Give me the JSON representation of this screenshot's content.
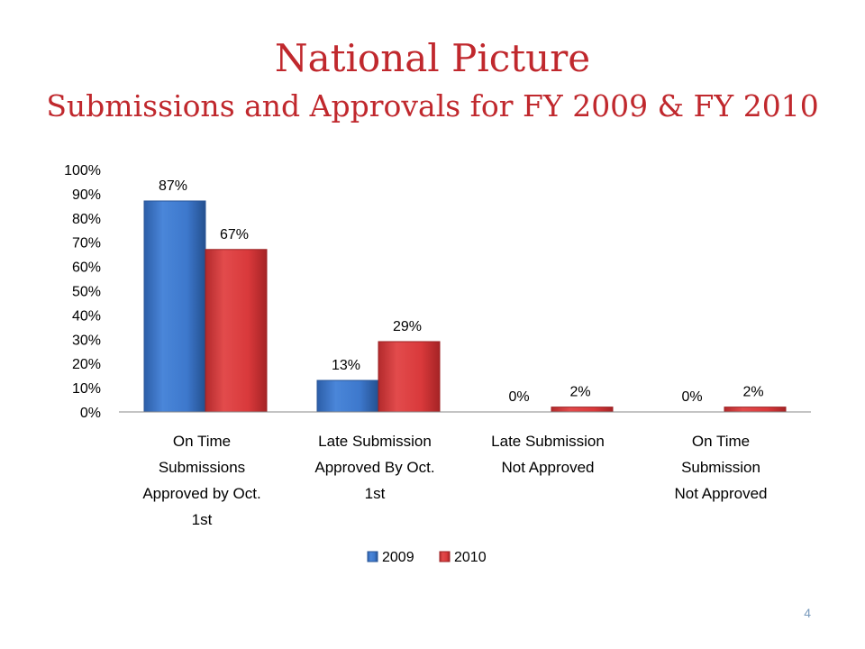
{
  "slide": {
    "title": "National Picture",
    "subtitle": "Submissions and Approvals for FY 2009 & FY 2010",
    "page_number": "4"
  },
  "colors": {
    "title": "#c0282d",
    "series_2009": "#3a74c8",
    "series_2010": "#d9383a"
  },
  "chart_data": {
    "type": "bar",
    "categories": [
      [
        "On Time",
        "Submissions",
        "Approved by Oct.",
        "1st"
      ],
      [
        "Late Submission",
        "Approved By Oct.",
        "1st"
      ],
      [
        "Late Submission",
        "Not Approved"
      ],
      [
        "On Time",
        "Submission",
        "Not Approved"
      ]
    ],
    "series": [
      {
        "name": "2009",
        "values": [
          87,
          13,
          0,
          0
        ],
        "labels": [
          "87%",
          "13%",
          "0%",
          "0%"
        ]
      },
      {
        "name": "2010",
        "values": [
          67,
          29,
          2,
          2
        ],
        "labels": [
          "67%",
          "29%",
          "2%",
          "2%"
        ]
      }
    ],
    "ylim": [
      0,
      100
    ],
    "yticks": [
      "0%",
      "10%",
      "20%",
      "30%",
      "40%",
      "50%",
      "60%",
      "70%",
      "80%",
      "90%",
      "100%"
    ],
    "legend": "bottom"
  }
}
